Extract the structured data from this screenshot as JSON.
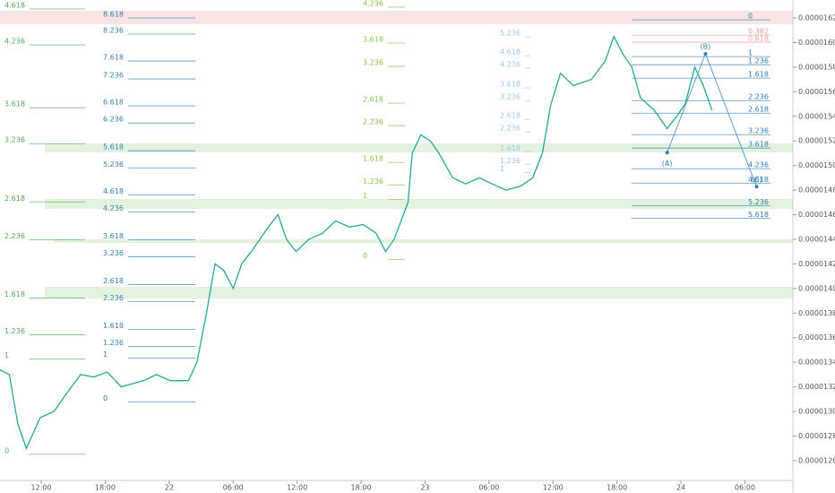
{
  "chart_data": {
    "type": "line",
    "x": [
      8.1,
      9.0,
      9.8,
      10.6,
      11.9,
      13.2,
      14.4,
      15.7,
      16.9,
      18.2,
      19.5,
      20.3,
      21.6,
      22.8,
      24.1,
      25.8,
      26.6,
      27.5,
      28.3,
      29.1,
      30.0,
      30.8,
      31.7,
      32.5,
      33.3,
      34.2,
      35.0,
      35.9,
      37.1,
      38.4,
      39.6,
      40.9,
      42.2,
      43.4,
      44.3,
      45.1,
      46.4,
      46.8,
      47.6,
      48.5,
      49.3,
      50.6,
      51.8,
      53.1,
      54.3,
      55.6,
      56.9,
      58.1,
      59.0,
      59.8,
      60.7,
      61.9,
      63.6,
      64.9,
      65.7,
      66.6,
      67.4,
      68.2,
      69.5,
      70.7,
      71.6,
      72.4,
      73.3,
      74.1,
      74.9
    ],
    "series": [
      {
        "color": "#26a69a",
        "values": [
          1.334e-05,
          1.33e-05,
          1.29e-05,
          1.27e-05,
          1.295e-05,
          1.3e-05,
          1.315e-05,
          1.33e-05,
          1.328e-05,
          1.332e-05,
          1.32e-05,
          1.322e-05,
          1.325e-05,
          1.33e-05,
          1.325e-05,
          1.325e-05,
          1.34e-05,
          1.38e-05,
          1.42e-05,
          1.415e-05,
          1.4e-05,
          1.42e-05,
          1.43e-05,
          1.44e-05,
          1.45e-05,
          1.46e-05,
          1.44e-05,
          1.43e-05,
          1.44e-05,
          1.445e-05,
          1.455e-05,
          1.45e-05,
          1.452e-05,
          1.445e-05,
          1.43e-05,
          1.44e-05,
          1.47e-05,
          1.51e-05,
          1.525e-05,
          1.52e-05,
          1.51e-05,
          1.49e-05,
          1.485e-05,
          1.49e-05,
          1.485e-05,
          1.48e-05,
          1.483e-05,
          1.49e-05,
          1.51e-05,
          1.55e-05,
          1.575e-05,
          1.565e-05,
          1.57e-05,
          1.585e-05,
          1.605e-05,
          1.59e-05,
          1.58e-05,
          1.555e-05,
          1.545e-05,
          1.53e-05,
          1.54e-05,
          1.55e-05,
          1.58e-05,
          1.565e-05,
          1.545e-05
        ]
      }
    ],
    "xlim": [
      8.13,
      82.5
    ],
    "xticks": [
      {
        "value": 12,
        "label": "12:00"
      },
      {
        "value": 18,
        "label": "18:00"
      },
      {
        "value": 24,
        "label": "22"
      },
      {
        "value": 30,
        "label": "06:00"
      },
      {
        "value": 36,
        "label": "12:00"
      },
      {
        "value": 42,
        "label": "18:00"
      },
      {
        "value": 48,
        "label": "23"
      },
      {
        "value": 54,
        "label": "06:00"
      },
      {
        "value": 60,
        "label": "12:00"
      },
      {
        "value": 66,
        "label": "18:00"
      },
      {
        "value": 72,
        "label": "24"
      },
      {
        "value": 78,
        "label": "06:00"
      }
    ],
    "ylim": [
      1.2337e-05,
      1.6346e-05
    ],
    "yticks": [
      {
        "value": 1.26e-05,
        "label": "0.00001260"
      },
      {
        "value": 1.28e-05,
        "label": "0.00001280"
      },
      {
        "value": 1.3e-05,
        "label": "0.00001300"
      },
      {
        "value": 1.32e-05,
        "label": "0.00001320"
      },
      {
        "value": 1.34e-05,
        "label": "0.00001340"
      },
      {
        "value": 1.36e-05,
        "label": "0.00001360"
      },
      {
        "value": 1.38e-05,
        "label": "0.00001380"
      },
      {
        "value": 1.4e-05,
        "label": "0.00001400"
      },
      {
        "value": 1.42e-05,
        "label": "0.00001420"
      },
      {
        "value": 1.44e-05,
        "label": "0.00001440"
      },
      {
        "value": 1.46e-05,
        "label": "0.00001460"
      },
      {
        "value": 1.48e-05,
        "label": "0.00001480"
      },
      {
        "value": 1.5e-05,
        "label": "0.00001500"
      },
      {
        "value": 1.52e-05,
        "label": "0.00001520"
      },
      {
        "value": 1.54e-05,
        "label": "0.00001540"
      },
      {
        "value": 1.56e-05,
        "label": "0.00001560"
      },
      {
        "value": 1.58e-05,
        "label": "0.00001580"
      },
      {
        "value": 1.6e-05,
        "label": "0.00001600"
      },
      {
        "value": 1.62e-05,
        "label": "0.00001620"
      }
    ],
    "fib_groups": [
      {
        "color": "#4caf50",
        "levels": [
          {
            "value": 1.6273e-05,
            "label": "4.618"
          },
          {
            "value": 1.5981e-05,
            "label": "4.236"
          },
          {
            "value": 1.547e-05,
            "label": "3.618"
          },
          {
            "value": 1.5178e-05,
            "label": "3.236"
          },
          {
            "value": 1.4704e-05,
            "label": "2.618"
          },
          {
            "value": 1.4397e-05,
            "label": "2.236"
          },
          {
            "value": 1.3922e-05,
            "label": "1.618"
          },
          {
            "value": 1.3623e-05,
            "label": "1.236"
          },
          {
            "value": 1.3426e-05,
            "label": "1"
          },
          {
            "value": 1.2652e-05,
            "label": "0"
          }
        ]
      },
      {
        "color": "#2e7fb8",
        "levels": [
          {
            "value": 1.62e-05,
            "label": "8.618"
          },
          {
            "value": 1.6069e-05,
            "label": "8.236"
          },
          {
            "value": 1.585e-05,
            "label": "7.618"
          },
          {
            "value": 1.5704e-05,
            "label": "7.236"
          },
          {
            "value": 1.5485e-05,
            "label": "6.618"
          },
          {
            "value": 1.5346e-05,
            "label": "6.236"
          },
          {
            "value": 1.512e-05,
            "label": "5.618"
          },
          {
            "value": 1.4981e-05,
            "label": "5.236"
          },
          {
            "value": 1.4762e-05,
            "label": "4.618"
          },
          {
            "value": 1.4623e-05,
            "label": "4.236"
          },
          {
            "value": 1.4397e-05,
            "label": "3.618"
          },
          {
            "value": 1.4258e-05,
            "label": "3.236"
          },
          {
            "value": 1.4032e-05,
            "label": "2.618"
          },
          {
            "value": 1.3893e-05,
            "label": "2.236"
          },
          {
            "value": 1.3667e-05,
            "label": "1.618"
          },
          {
            "value": 1.3528e-05,
            "label": "1.236"
          },
          {
            "value": 1.3433e-05,
            "label": "1"
          },
          {
            "value": 1.3076e-05,
            "label": "0"
          }
        ]
      },
      {
        "color": "#8bc34a",
        "levels": [
          {
            "value": 1.6288e-05,
            "label": "4.236"
          },
          {
            "value": 1.5996e-05,
            "label": "3.618"
          },
          {
            "value": 1.5806e-05,
            "label": "3.236"
          },
          {
            "value": 1.5507e-05,
            "label": "2.618"
          },
          {
            "value": 1.5324e-05,
            "label": "2.236"
          },
          {
            "value": 1.5025e-05,
            "label": "1.618"
          },
          {
            "value": 1.4842e-05,
            "label": "1.236"
          },
          {
            "value": 1.4725e-05,
            "label": "1"
          },
          {
            "value": 1.4236e-05,
            "label": "0"
          }
        ]
      },
      {
        "color": "#9ec5e8",
        "levels": [
          {
            "value": 1.6047e-05,
            "label": "5.236"
          },
          {
            "value": 1.5893e-05,
            "label": "4.618"
          },
          {
            "value": 1.5791e-05,
            "label": "4.236"
          },
          {
            "value": 1.5631e-05,
            "label": "3.618"
          },
          {
            "value": 1.5528e-05,
            "label": "3.236"
          },
          {
            "value": 1.5375e-05,
            "label": "2.618"
          },
          {
            "value": 1.5273e-05,
            "label": "2.236"
          },
          {
            "value": 1.5112e-05,
            "label": "1.618"
          },
          {
            "value": 1.501e-05,
            "label": "1.236"
          },
          {
            "value": 1.4944e-05,
            "label": "1"
          }
        ]
      },
      {
        "color": "#2e7fb8",
        "levels": [
          {
            "value": 1.6185e-05,
            "label": "0"
          },
          {
            "value": 1.6061e-05,
            "label": "0.382"
          },
          {
            "value": 1.6003e-05,
            "label": "0.618"
          },
          {
            "value": 1.5886e-05,
            "label": "1"
          },
          {
            "value": 1.582e-05,
            "label": "1.236"
          },
          {
            "value": 1.5711e-05,
            "label": "1.618"
          },
          {
            "value": 1.5528e-05,
            "label": "2.236"
          },
          {
            "value": 1.5426e-05,
            "label": "2.618"
          },
          {
            "value": 1.5251e-05,
            "label": "3.236"
          },
          {
            "value": 1.5142e-05,
            "label": "3.618"
          },
          {
            "value": 1.4974e-05,
            "label": "4.236"
          },
          {
            "value": 1.4857e-05,
            "label": "4.618"
          },
          {
            "value": 1.4674e-05,
            "label": "5.236"
          },
          {
            "value": 1.4572e-05,
            "label": "5.618"
          }
        ]
      }
    ],
    "wave_points": [
      {
        "label": "(A)",
        "x": 70.7,
        "y": 1.5105e-05
      },
      {
        "label": "(B)",
        "x": 74.3,
        "y": 1.5908e-05
      },
      {
        "label": "(C)",
        "x": 79.1,
        "y": 1.4828e-05
      }
    ]
  }
}
